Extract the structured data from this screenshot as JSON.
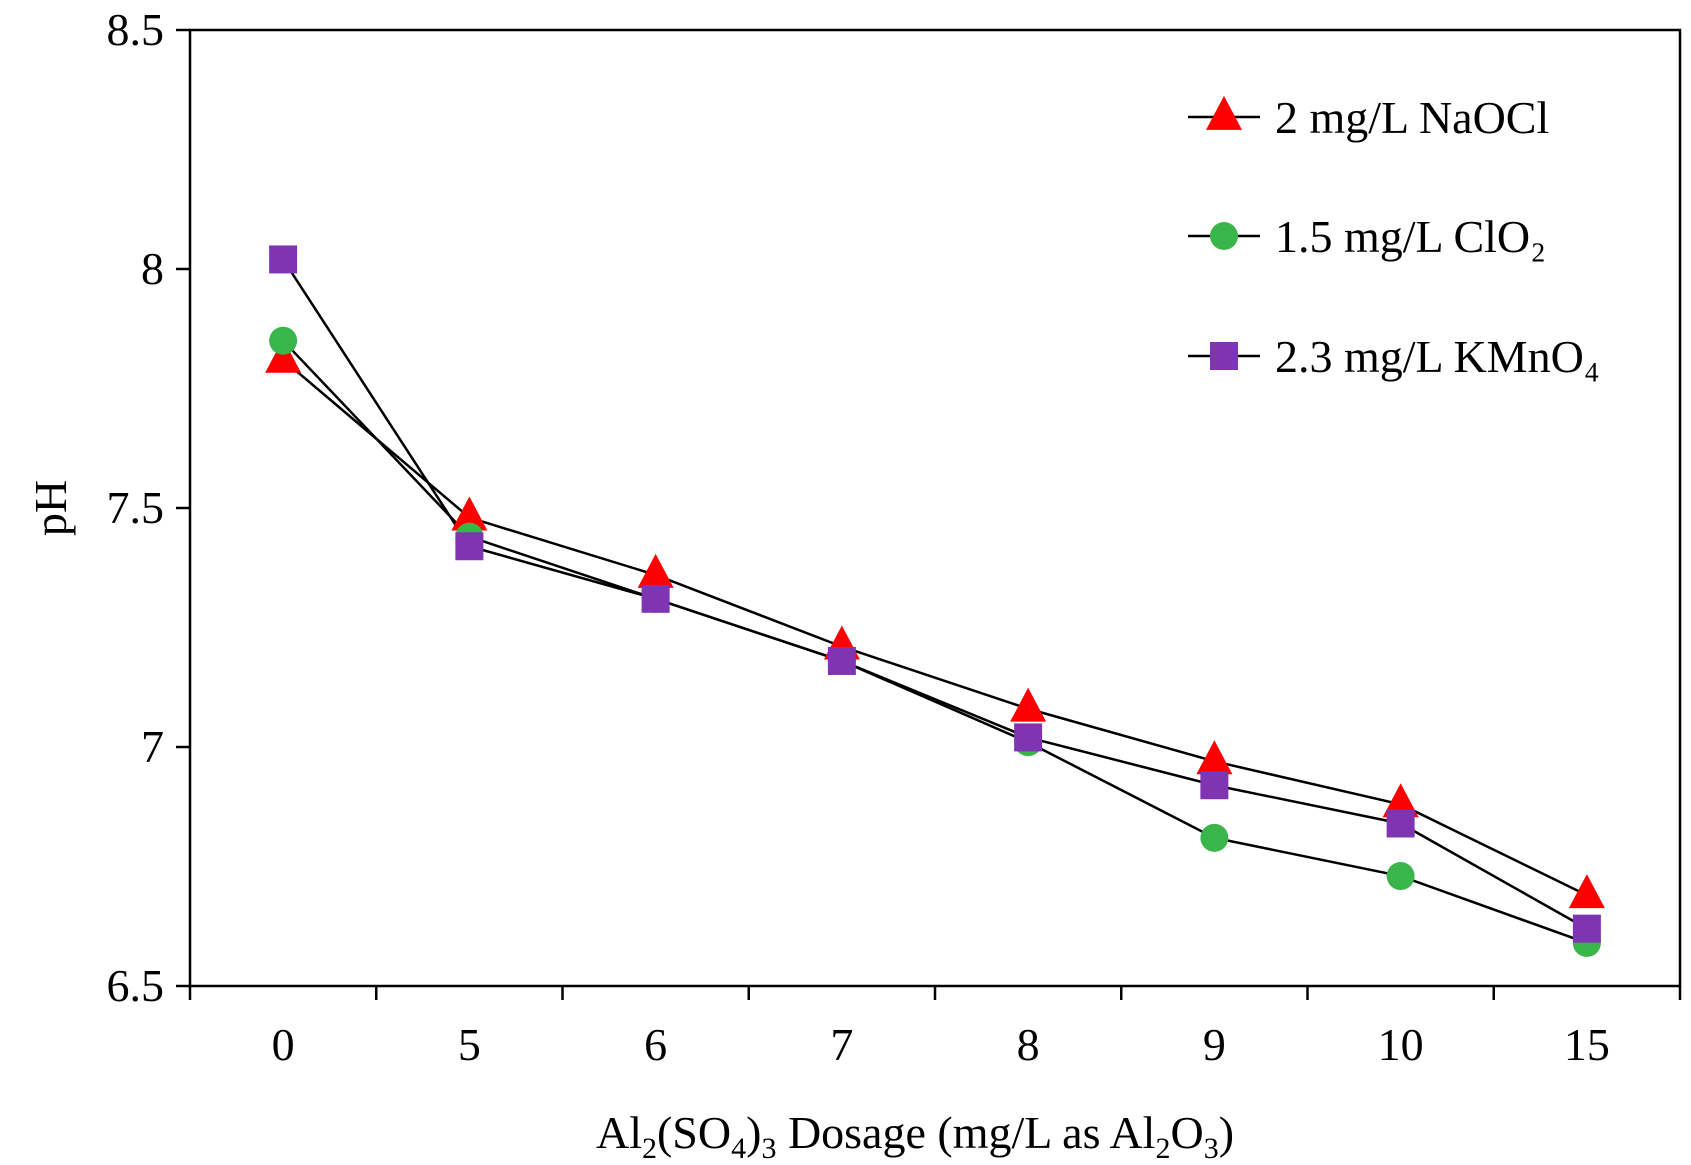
{
  "chart_data": {
    "type": "line",
    "title": "",
    "xlabel": "Al2(SO4)3 Dosage (mg/L as Al2O3)",
    "xlabel_parts": [
      {
        "text": "Al",
        "sub": false
      },
      {
        "text": "2",
        "sub": true
      },
      {
        "text": "(SO",
        "sub": false
      },
      {
        "text": "4",
        "sub": true
      },
      {
        "text": ")",
        "sub": false
      },
      {
        "text": "3",
        "sub": true
      },
      {
        "text": " Dosage (mg/L as Al",
        "sub": false
      },
      {
        "text": "2",
        "sub": true
      },
      {
        "text": "O",
        "sub": false
      },
      {
        "text": "3",
        "sub": true
      },
      {
        "text": ")",
        "sub": false
      }
    ],
    "ylabel": "pH",
    "categories": [
      "0",
      "5",
      "6",
      "7",
      "8",
      "9",
      "10",
      "15"
    ],
    "ylim": [
      6.5,
      8.5
    ],
    "yticks": [
      "6.5",
      "7",
      "7.5",
      "8",
      "8.5"
    ],
    "grid": false,
    "legend_position": "top-right",
    "series": [
      {
        "name": "2 mg/L NaOCl",
        "marker": "triangle",
        "color": "#ff0000",
        "values": [
          7.81,
          7.48,
          7.36,
          7.21,
          7.08,
          6.97,
          6.88,
          6.69
        ]
      },
      {
        "name": "1.5 mg/L ClO₂",
        "marker": "circle",
        "color": "#3ab54a",
        "values": [
          7.85,
          7.44,
          7.31,
          7.18,
          7.01,
          6.81,
          6.73,
          6.59
        ]
      },
      {
        "name": "2.3 mg/L KMnO₄",
        "marker": "square",
        "color": "#7f35b2",
        "values": [
          8.02,
          7.42,
          7.31,
          7.18,
          7.02,
          6.92,
          6.84,
          6.62
        ]
      }
    ]
  }
}
